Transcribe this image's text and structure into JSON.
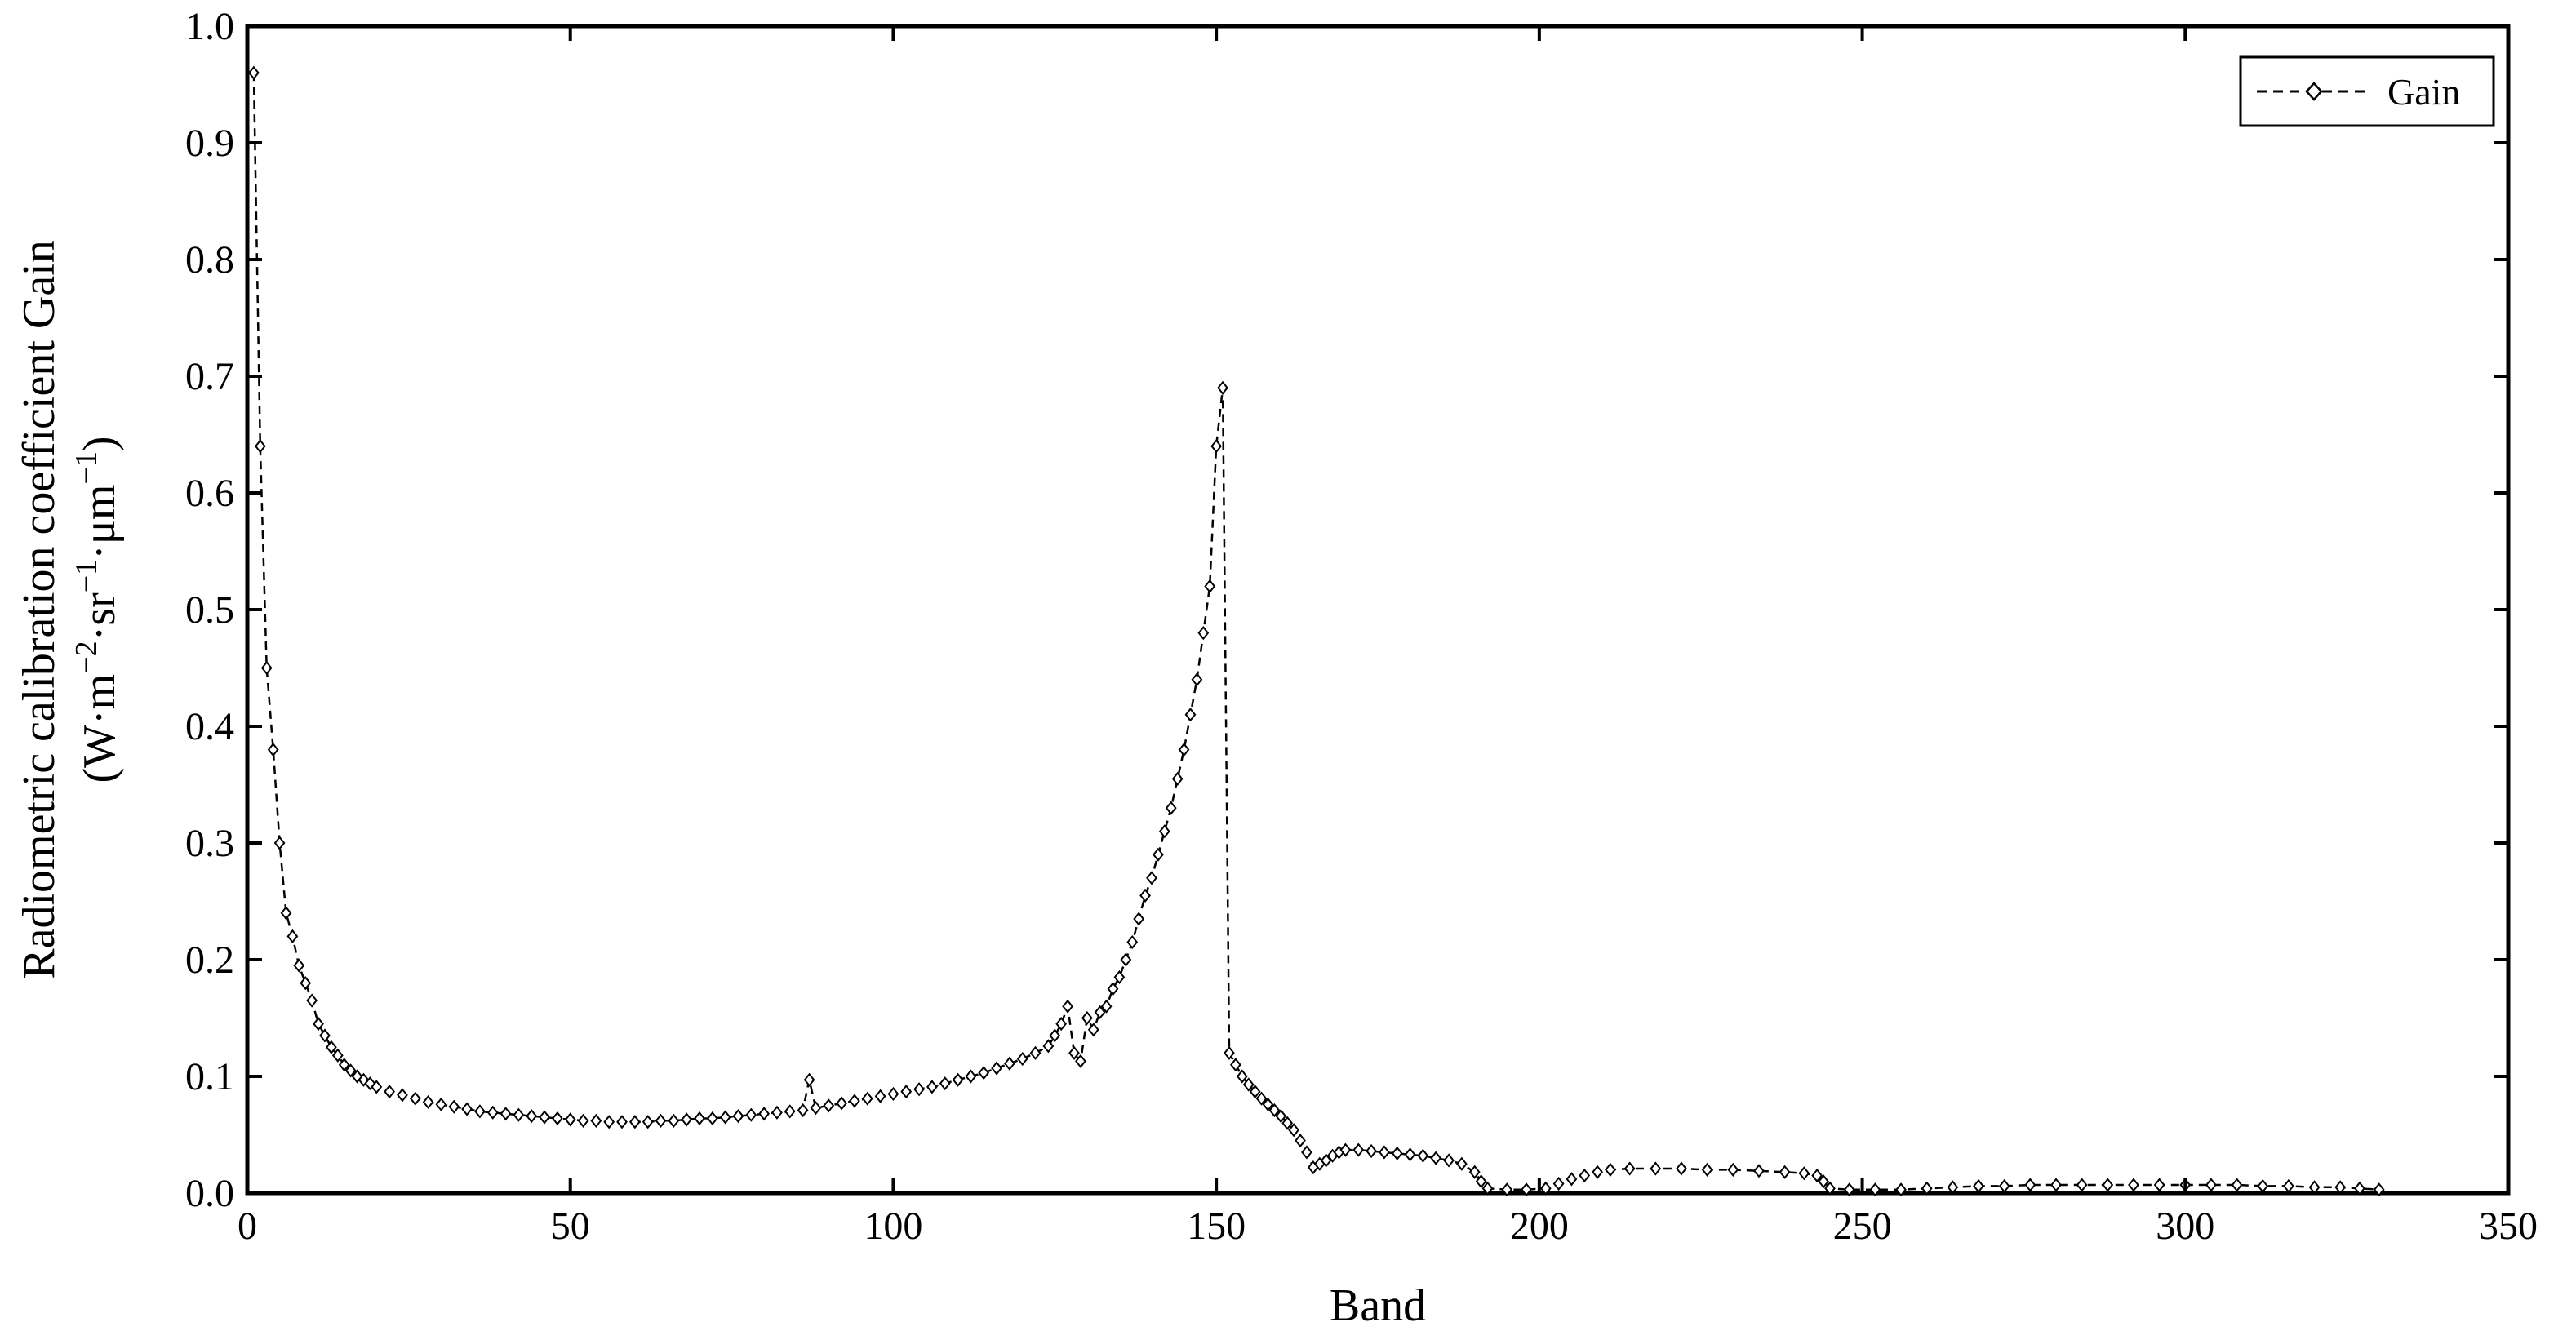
{
  "chart_data": {
    "type": "line",
    "title": "",
    "xlabel": "Band",
    "ylabel_line1": "Radiometric calibration coefficient Gain",
    "ylabel_line2": {
      "prefix": "(W·m",
      "sup1": "−2",
      "mid1": "·sr",
      "sup2": "−1",
      "mid2": "·μm",
      "sup3": "−1",
      "suffix": ")"
    },
    "xlim": [
      0,
      350
    ],
    "ylim": [
      0.0,
      1.0
    ],
    "x_ticks": [
      0,
      50,
      100,
      150,
      200,
      250,
      300,
      350
    ],
    "y_ticks": [
      0.0,
      0.1,
      0.2,
      0.3,
      0.4,
      0.5,
      0.6,
      0.7,
      0.8,
      0.9,
      1.0
    ],
    "y_tick_labels": [
      "0.0",
      "0.1",
      "0.2",
      "0.3",
      "0.4",
      "0.5",
      "0.6",
      "0.7",
      "0.8",
      "0.9",
      "1.0"
    ],
    "grid": false,
    "legend_position": "top-right",
    "marker": "open-diamond",
    "line_style": "dashed",
    "series": [
      {
        "name": "Gain",
        "color": "#000000",
        "points": [
          [
            1,
            0.96
          ],
          [
            2,
            0.64
          ],
          [
            3,
            0.45
          ],
          [
            4,
            0.38
          ],
          [
            5,
            0.3
          ],
          [
            6,
            0.24
          ],
          [
            7,
            0.22
          ],
          [
            8,
            0.195
          ],
          [
            9,
            0.18
          ],
          [
            10,
            0.165
          ],
          [
            11,
            0.145
          ],
          [
            12,
            0.135
          ],
          [
            13,
            0.125
          ],
          [
            14,
            0.118
          ],
          [
            15,
            0.11
          ],
          [
            16,
            0.105
          ],
          [
            17,
            0.1
          ],
          [
            18,
            0.097
          ],
          [
            19,
            0.094
          ],
          [
            20,
            0.091
          ],
          [
            22,
            0.087
          ],
          [
            24,
            0.084
          ],
          [
            26,
            0.081
          ],
          [
            28,
            0.078
          ],
          [
            30,
            0.076
          ],
          [
            32,
            0.074
          ],
          [
            34,
            0.072
          ],
          [
            36,
            0.07
          ],
          [
            38,
            0.069
          ],
          [
            40,
            0.068
          ],
          [
            42,
            0.067
          ],
          [
            44,
            0.066
          ],
          [
            46,
            0.065
          ],
          [
            48,
            0.064
          ],
          [
            50,
            0.063
          ],
          [
            52,
            0.062
          ],
          [
            54,
            0.062
          ],
          [
            56,
            0.061
          ],
          [
            58,
            0.061
          ],
          [
            60,
            0.061
          ],
          [
            62,
            0.061
          ],
          [
            64,
            0.062
          ],
          [
            66,
            0.062
          ],
          [
            68,
            0.063
          ],
          [
            70,
            0.064
          ],
          [
            72,
            0.064
          ],
          [
            74,
            0.065
          ],
          [
            76,
            0.066
          ],
          [
            78,
            0.067
          ],
          [
            80,
            0.068
          ],
          [
            82,
            0.069
          ],
          [
            84,
            0.07
          ],
          [
            86,
            0.071
          ],
          [
            87,
            0.097
          ],
          [
            88,
            0.073
          ],
          [
            90,
            0.075
          ],
          [
            92,
            0.077
          ],
          [
            94,
            0.079
          ],
          [
            96,
            0.081
          ],
          [
            98,
            0.083
          ],
          [
            100,
            0.085
          ],
          [
            102,
            0.087
          ],
          [
            104,
            0.089
          ],
          [
            106,
            0.091
          ],
          [
            108,
            0.094
          ],
          [
            110,
            0.097
          ],
          [
            112,
            0.1
          ],
          [
            114,
            0.103
          ],
          [
            116,
            0.107
          ],
          [
            118,
            0.111
          ],
          [
            120,
            0.115
          ],
          [
            122,
            0.12
          ],
          [
            124,
            0.126
          ],
          [
            125,
            0.135
          ],
          [
            126,
            0.145
          ],
          [
            127,
            0.16
          ],
          [
            128,
            0.12
          ],
          [
            129,
            0.113
          ],
          [
            130,
            0.15
          ],
          [
            131,
            0.14
          ],
          [
            132,
            0.155
          ],
          [
            133,
            0.16
          ],
          [
            134,
            0.175
          ],
          [
            135,
            0.185
          ],
          [
            136,
            0.2
          ],
          [
            137,
            0.215
          ],
          [
            138,
            0.235
          ],
          [
            139,
            0.255
          ],
          [
            140,
            0.27
          ],
          [
            141,
            0.29
          ],
          [
            142,
            0.31
          ],
          [
            143,
            0.33
          ],
          [
            144,
            0.355
          ],
          [
            145,
            0.38
          ],
          [
            146,
            0.41
          ],
          [
            147,
            0.44
          ],
          [
            148,
            0.48
          ],
          [
            149,
            0.52
          ],
          [
            150,
            0.64
          ],
          [
            151,
            0.69
          ],
          [
            152,
            0.12
          ],
          [
            153,
            0.11
          ],
          [
            154,
            0.1
          ],
          [
            155,
            0.093
          ],
          [
            156,
            0.087
          ],
          [
            157,
            0.081
          ],
          [
            158,
            0.076
          ],
          [
            159,
            0.071
          ],
          [
            160,
            0.066
          ],
          [
            161,
            0.06
          ],
          [
            162,
            0.054
          ],
          [
            163,
            0.045
          ],
          [
            164,
            0.035
          ],
          [
            165,
            0.022
          ],
          [
            166,
            0.025
          ],
          [
            167,
            0.028
          ],
          [
            168,
            0.032
          ],
          [
            169,
            0.035
          ],
          [
            170,
            0.037
          ],
          [
            172,
            0.037
          ],
          [
            174,
            0.036
          ],
          [
            176,
            0.035
          ],
          [
            178,
            0.034
          ],
          [
            180,
            0.033
          ],
          [
            182,
            0.032
          ],
          [
            184,
            0.03
          ],
          [
            186,
            0.028
          ],
          [
            188,
            0.025
          ],
          [
            190,
            0.018
          ],
          [
            191,
            0.01
          ],
          [
            192,
            0.004
          ],
          [
            195,
            0.003
          ],
          [
            198,
            0.003
          ],
          [
            201,
            0.004
          ],
          [
            203,
            0.008
          ],
          [
            205,
            0.012
          ],
          [
            207,
            0.015
          ],
          [
            209,
            0.018
          ],
          [
            211,
            0.02
          ],
          [
            214,
            0.021
          ],
          [
            218,
            0.021
          ],
          [
            222,
            0.021
          ],
          [
            226,
            0.02
          ],
          [
            230,
            0.02
          ],
          [
            234,
            0.019
          ],
          [
            238,
            0.018
          ],
          [
            241,
            0.017
          ],
          [
            243,
            0.015
          ],
          [
            244,
            0.01
          ],
          [
            245,
            0.004
          ],
          [
            248,
            0.003
          ],
          [
            252,
            0.003
          ],
          [
            256,
            0.003
          ],
          [
            260,
            0.004
          ],
          [
            264,
            0.005
          ],
          [
            268,
            0.006
          ],
          [
            272,
            0.006
          ],
          [
            276,
            0.007
          ],
          [
            280,
            0.007
          ],
          [
            284,
            0.007
          ],
          [
            288,
            0.007
          ],
          [
            292,
            0.007
          ],
          [
            296,
            0.007
          ],
          [
            300,
            0.007
          ],
          [
            304,
            0.007
          ],
          [
            308,
            0.007
          ],
          [
            312,
            0.006
          ],
          [
            316,
            0.006
          ],
          [
            320,
            0.005
          ],
          [
            324,
            0.005
          ],
          [
            327,
            0.004
          ],
          [
            330,
            0.003
          ]
        ]
      }
    ]
  }
}
